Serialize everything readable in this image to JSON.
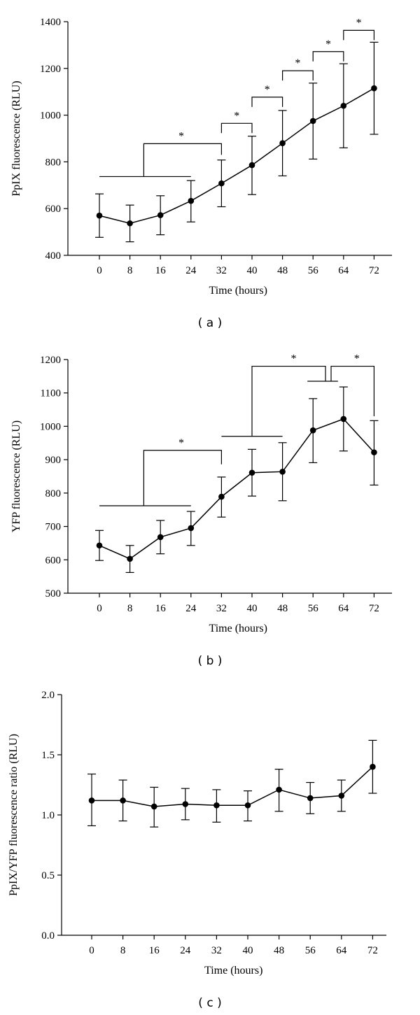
{
  "chart_data": [
    {
      "type": "line",
      "panel_label": "( a )",
      "xlabel": "Time (hours)",
      "ylabel": "PpIX fluorescence (RLU)",
      "ylim": [
        400,
        1400
      ],
      "yticks": [
        "400",
        "600",
        "800",
        "1000",
        "1200",
        "1400"
      ],
      "categories": [
        "0",
        "8",
        "16",
        "24",
        "32",
        "40",
        "48",
        "56",
        "64",
        "72"
      ],
      "values": [
        570,
        537,
        572,
        633,
        708,
        786,
        880,
        975,
        1040,
        1115
      ],
      "error_upper": [
        663,
        615,
        655,
        720,
        808,
        910,
        1020,
        1137,
        1220,
        1312
      ],
      "error_lower": [
        477,
        458,
        488,
        543,
        608,
        660,
        740,
        812,
        860,
        918
      ],
      "significance_marker": "*",
      "significance": [
        {
          "group": [
            "0",
            "24"
          ],
          "vs": "32",
          "label": "*"
        },
        {
          "a": "32",
          "b": "40",
          "label": "*"
        },
        {
          "a": "40",
          "b": "48",
          "label": "*"
        },
        {
          "a": "48",
          "b": "56",
          "label": "*"
        },
        {
          "a": "56",
          "b": "64",
          "label": "*"
        },
        {
          "a": "64",
          "b": "72",
          "label": "*"
        }
      ]
    },
    {
      "type": "line",
      "panel_label": "( b )",
      "xlabel": "Time (hours)",
      "ylabel": "YFP fluorescence (RLU)",
      "ylim": [
        500,
        1200
      ],
      "yticks": [
        "500",
        "600",
        "700",
        "800",
        "900",
        "1000",
        "1100",
        "1200"
      ],
      "categories": [
        "0",
        "8",
        "16",
        "24",
        "32",
        "40",
        "48",
        "56",
        "64",
        "72"
      ],
      "values": [
        643,
        603,
        668,
        695,
        789,
        861,
        864,
        988,
        1022,
        922
      ],
      "error_upper": [
        688,
        643,
        718,
        745,
        848,
        931,
        951,
        1083,
        1118,
        1017
      ],
      "error_lower": [
        598,
        562,
        618,
        643,
        728,
        791,
        777,
        891,
        926,
        824
      ],
      "significance_marker": "*",
      "significance": [
        {
          "group": [
            "0",
            "24"
          ],
          "vs": "32",
          "label": "*"
        },
        {
          "group": [
            "32",
            "48"
          ],
          "vs_group": [
            "56",
            "64"
          ],
          "label": "*"
        },
        {
          "group": [
            "56",
            "64"
          ],
          "vs": "72",
          "label": "*"
        }
      ]
    },
    {
      "type": "line",
      "panel_label": "( c )",
      "xlabel": "Time (hours)",
      "ylabel": "PpIX/YFP fluorescence ratio (RLU)",
      "ylim": [
        0.0,
        2.0
      ],
      "yticks": [
        "0.0",
        "0.5",
        "1.0",
        "1.5",
        "2.0"
      ],
      "categories": [
        "0",
        "8",
        "16",
        "24",
        "32",
        "40",
        "48",
        "56",
        "64",
        "72"
      ],
      "values": [
        1.12,
        1.12,
        1.07,
        1.09,
        1.08,
        1.08,
        1.21,
        1.14,
        1.16,
        1.4
      ],
      "error_upper": [
        1.34,
        1.29,
        1.23,
        1.22,
        1.21,
        1.2,
        1.38,
        1.27,
        1.29,
        1.62
      ],
      "error_lower": [
        0.91,
        0.95,
        0.9,
        0.96,
        0.94,
        0.95,
        1.03,
        1.01,
        1.03,
        1.18
      ]
    }
  ]
}
